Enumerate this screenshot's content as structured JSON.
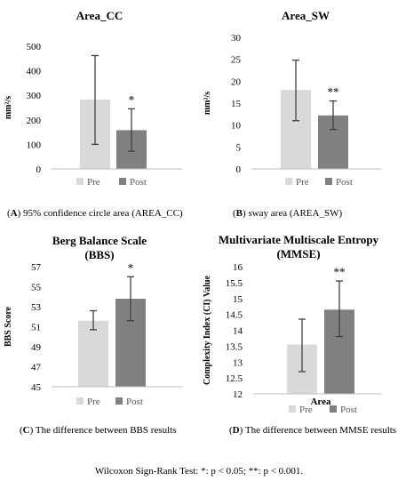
{
  "captions": {
    "A": {
      "letter": "A",
      "text": " 95% confidence circle area (AREA_CC)"
    },
    "B": {
      "letter": "B",
      "text": " sway area (AREA_SW)"
    },
    "C": {
      "letter": "C",
      "text": " The difference between BBS results"
    },
    "D": {
      "letter": "D",
      "text": " The difference between MMSE results"
    }
  },
  "footer": "Wilcoxon Sign-Rank Test: *: p < 0.05; **: p < 0.001.",
  "colors": {
    "pre": "#d9d9d9",
    "post": "#808080",
    "error": "#404040"
  },
  "chart_data": [
    {
      "id": "A",
      "type": "bar",
      "title": [
        "Area_CC"
      ],
      "ylabel": "mm²/s",
      "xlabel": "",
      "categories": [
        "Pre",
        "Post"
      ],
      "values": [
        283,
        158
      ],
      "error_low": [
        100,
        72
      ],
      "error_high": [
        462,
        245
      ],
      "ylim": [
        0,
        500
      ],
      "yticks": [
        "0",
        "100",
        "200",
        "300",
        "400",
        "500"
      ],
      "significance": [
        "",
        "*"
      ],
      "legend": [
        "Pre",
        "Post"
      ],
      "grid": false
    },
    {
      "id": "B",
      "type": "bar",
      "title": [
        "Area_SW"
      ],
      "ylabel": "mm²/s",
      "xlabel": "",
      "categories": [
        "Pre",
        "Post"
      ],
      "values": [
        18,
        12.2
      ],
      "error_low": [
        11,
        9
      ],
      "error_high": [
        24.8,
        15.5
      ],
      "ylim": [
        0,
        30
      ],
      "yticks": [
        "0",
        "5",
        "10",
        "15",
        "20",
        "25",
        "30"
      ],
      "significance": [
        "",
        "**"
      ],
      "legend": [
        "Pre",
        "Post"
      ],
      "grid": false
    },
    {
      "id": "C",
      "type": "bar",
      "title": [
        "Berg Balance Scale",
        "(BBS)"
      ],
      "ylabel": "BBS Score",
      "xlabel": "",
      "categories": [
        "Pre",
        "Post"
      ],
      "values": [
        51.6,
        53.8
      ],
      "error_low": [
        50.7,
        51.6
      ],
      "error_high": [
        52.6,
        56
      ],
      "ylim": [
        45,
        57
      ],
      "yticks": [
        "45",
        "47",
        "49",
        "51",
        "53",
        "55",
        "57"
      ],
      "significance": [
        "",
        "*"
      ],
      "legend": [
        "Pre",
        "Post"
      ],
      "grid": false
    },
    {
      "id": "D",
      "type": "bar",
      "title": [
        "Multivariate Multiscale Entropy",
        "(MMSE)"
      ],
      "ylabel": "Complexity Index (CI) Value",
      "xlabel": "Area",
      "categories": [
        "Pre",
        "Post"
      ],
      "values": [
        13.55,
        14.65
      ],
      "error_low": [
        12.7,
        13.8
      ],
      "error_high": [
        14.35,
        15.55
      ],
      "ylim": [
        12,
        16
      ],
      "yticks": [
        "12",
        "12.5",
        "13",
        "13.5",
        "14",
        "14.5",
        "15",
        "15.5",
        "16"
      ],
      "significance": [
        "",
        "**"
      ],
      "legend": [
        "Pre",
        "Post"
      ],
      "grid": false
    }
  ]
}
